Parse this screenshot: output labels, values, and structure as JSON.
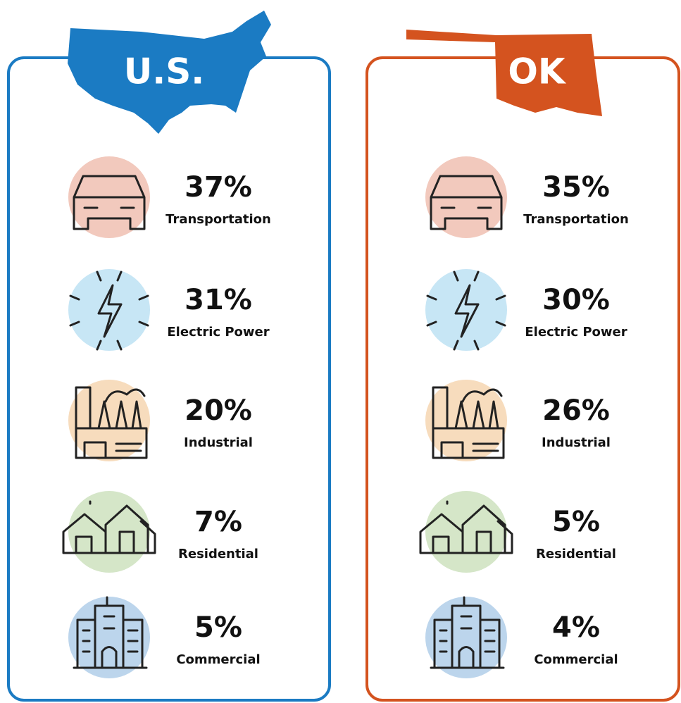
{
  "panels": [
    {
      "title": "U.S.",
      "items": [
        {
          "value": "37%",
          "label": "Transportation"
        },
        {
          "value": "31%",
          "label": "Electric Power"
        },
        {
          "value": "20%",
          "label": "Industrial"
        },
        {
          "value": "7%",
          "label": "Residential"
        },
        {
          "value": "5%",
          "label": "Commercial"
        }
      ]
    },
    {
      "title": "OK",
      "items": [
        {
          "value": "35%",
          "label": "Transportation"
        },
        {
          "value": "30%",
          "label": "Electric Power"
        },
        {
          "value": "26%",
          "label": "Industrial"
        },
        {
          "value": "5%",
          "label": "Residential"
        },
        {
          "value": "4%",
          "label": "Commercial"
        }
      ]
    }
  ]
}
